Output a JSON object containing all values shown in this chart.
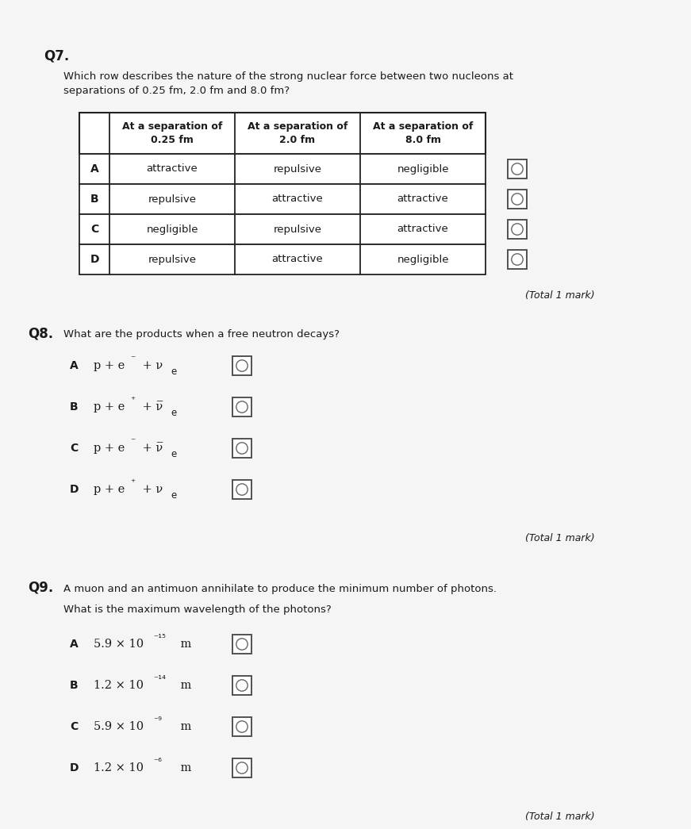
{
  "bg_color": "#f5f5f5",
  "paper_color": "#f8f8f8",
  "text_color": "#1a1a1a",
  "q7": {
    "label": "Q7.",
    "question": "Which row describes the nature of the strong nuclear force between two nucleons at\nseparations of 0.25 fm, 2.0 fm and 8.0 fm?",
    "table_headers": [
      "",
      "At a separation of\n0.25 fm",
      "At a separation of\n2.0 fm",
      "At a separation of\n8.0 fm"
    ],
    "rows": [
      [
        "A",
        "attractive",
        "repulsive",
        "negligible"
      ],
      [
        "B",
        "repulsive",
        "attractive",
        "attractive"
      ],
      [
        "C",
        "negligible",
        "repulsive",
        "attractive"
      ],
      [
        "D",
        "repulsive",
        "attractive",
        "negligible"
      ]
    ],
    "total_mark": "(Total 1 mark)"
  },
  "q8": {
    "label": "Q8.",
    "question": "What are the products when a free neutron decays?",
    "options_labels": [
      "A",
      "B",
      "C",
      "D"
    ],
    "total_mark": "(Total 1 mark)"
  },
  "q9": {
    "label": "Q9.",
    "question_line1": "A muon and an antimuon annihilate to produce the minimum number of photons.",
    "question_line2": "What is the maximum wavelength of the photons?",
    "options": [
      [
        "A",
        "5.9 × 10"
      ],
      [
        "B",
        "1.2 × 10"
      ],
      [
        "C",
        "5.9 × 10"
      ],
      [
        "D",
        "1.2 × 10"
      ]
    ],
    "options_exp": [
      "⁻¹⁵",
      "⁻¹⁴",
      "⁻⁹",
      "⁻⁶"
    ],
    "total_mark": "(Total 1 mark)"
  }
}
